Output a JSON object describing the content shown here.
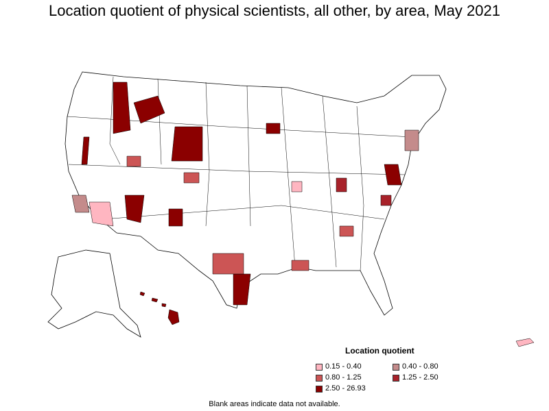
{
  "title": "Location quotient of physical scientists, all other, by area, May 2021",
  "legend": {
    "title": "Location quotient",
    "items": [
      {
        "label": "0.15 - 0.40",
        "color": "#ffb6c1"
      },
      {
        "label": "0.40 - 0.80",
        "color": "#c48b8b"
      },
      {
        "label": "0.80 - 1.25",
        "color": "#cc5555"
      },
      {
        "label": "1.25 - 2.50",
        "color": "#a8222a"
      },
      {
        "label": "2.50 - 26.93",
        "color": "#8b0000"
      }
    ]
  },
  "footnote": "Blank areas indicate data not available."
}
